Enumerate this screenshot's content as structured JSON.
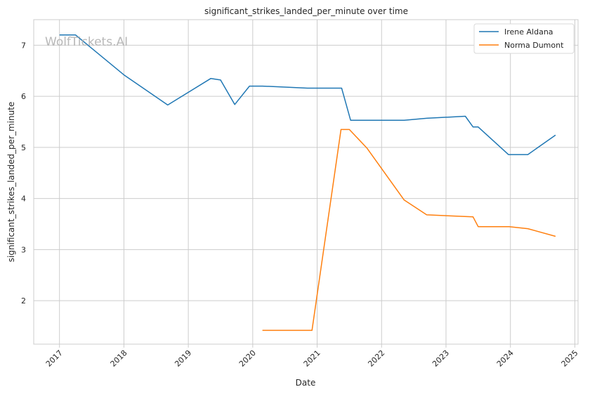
{
  "chart_data": {
    "type": "line",
    "title": "significant_strikes_landed_per_minute over time",
    "xlabel": "Date",
    "ylabel": "significant_strikes_landed_per_minute",
    "watermark": "WolfTickets.AI",
    "xlim": [
      2016.6,
      2025.05
    ],
    "ylim": [
      1.15,
      7.5
    ],
    "grid": true,
    "legend_position": "top-right",
    "x_ticks": [
      2017,
      2018,
      2019,
      2020,
      2021,
      2022,
      2023,
      2024,
      2025
    ],
    "x_tick_labels": [
      "2017",
      "2018",
      "2019",
      "2020",
      "2021",
      "2022",
      "2023",
      "2024",
      "2025"
    ],
    "y_ticks": [
      2,
      3,
      4,
      5,
      6,
      7
    ],
    "y_tick_labels": [
      "2",
      "3",
      "4",
      "5",
      "6",
      "7"
    ],
    "series": [
      {
        "name": "Irene Aldana",
        "color": "#1f77b4",
        "x": [
          2017.0,
          2017.25,
          2018.0,
          2018.68,
          2019.35,
          2019.5,
          2019.72,
          2019.95,
          2020.15,
          2020.85,
          2021.38,
          2021.52,
          2022.35,
          2022.7,
          2023.3,
          2023.42,
          2023.5,
          2023.97,
          2024.27,
          2024.7
        ],
        "y": [
          7.2,
          7.2,
          6.42,
          5.83,
          6.35,
          6.32,
          5.84,
          6.2,
          6.2,
          6.16,
          6.16,
          5.53,
          5.53,
          5.57,
          5.61,
          5.4,
          5.4,
          4.86,
          4.86,
          5.24
        ]
      },
      {
        "name": "Norma Dumont",
        "color": "#ff7f0e",
        "x": [
          2020.15,
          2020.92,
          2021.37,
          2021.5,
          2021.77,
          2022.35,
          2022.7,
          2023.42,
          2023.5,
          2023.98,
          2024.27,
          2024.7
        ],
        "y": [
          1.42,
          1.42,
          5.35,
          5.35,
          4.99,
          3.97,
          3.68,
          3.64,
          3.45,
          3.45,
          3.41,
          3.26
        ]
      }
    ]
  }
}
